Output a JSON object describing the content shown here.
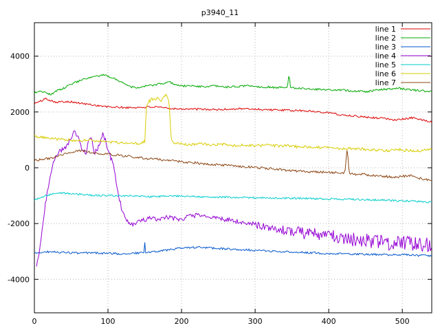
{
  "window": {
    "background": "#ffffff"
  },
  "chart_data": {
    "type": "line",
    "title": "p3940_11",
    "xlabel": "",
    "ylabel": "",
    "xlim": [
      0,
      540
    ],
    "ylim": [
      -5200,
      5200
    ],
    "xticks": [
      0,
      100,
      200,
      300,
      400,
      500
    ],
    "yticks": [
      -4000,
      -2000,
      0,
      2000,
      4000
    ],
    "grid": "dotted",
    "legend_position": "top-right",
    "axis_color": "#000000",
    "grid_color": "#b4b4b4",
    "series": [
      {
        "name": "line 1",
        "color": "#dd0000",
        "seed": 101,
        "noise": [
          [
            0,
            35
          ],
          [
            540,
            35
          ]
        ],
        "points": [
          [
            0,
            2300
          ],
          [
            8,
            2380
          ],
          [
            15,
            2480
          ],
          [
            22,
            2420
          ],
          [
            30,
            2350
          ],
          [
            45,
            2380
          ],
          [
            60,
            2320
          ],
          [
            80,
            2250
          ],
          [
            100,
            2180
          ],
          [
            130,
            2150
          ],
          [
            160,
            2180
          ],
          [
            190,
            2120
          ],
          [
            220,
            2100
          ],
          [
            250,
            2080
          ],
          [
            280,
            2120
          ],
          [
            310,
            2090
          ],
          [
            340,
            2060
          ],
          [
            370,
            2040
          ],
          [
            400,
            1980
          ],
          [
            415,
            1900
          ],
          [
            430,
            1870
          ],
          [
            445,
            1830
          ],
          [
            460,
            1800
          ],
          [
            475,
            1770
          ],
          [
            490,
            1720
          ],
          [
            505,
            1750
          ],
          [
            515,
            1800
          ],
          [
            525,
            1720
          ],
          [
            540,
            1640
          ]
        ]
      },
      {
        "name": "line 2",
        "color": "#00a800",
        "seed": 202,
        "noise": [
          [
            0,
            35
          ],
          [
            540,
            35
          ]
        ],
        "points": [
          [
            0,
            2680
          ],
          [
            8,
            2760
          ],
          [
            15,
            2700
          ],
          [
            22,
            2620
          ],
          [
            30,
            2760
          ],
          [
            38,
            2820
          ],
          [
            50,
            3000
          ],
          [
            62,
            3120
          ],
          [
            72,
            3200
          ],
          [
            85,
            3280
          ],
          [
            95,
            3320
          ],
          [
            105,
            3240
          ],
          [
            115,
            3120
          ],
          [
            125,
            2980
          ],
          [
            132,
            2900
          ],
          [
            140,
            2880
          ],
          [
            150,
            2920
          ],
          [
            160,
            2960
          ],
          [
            170,
            3000
          ],
          [
            178,
            3030
          ],
          [
            185,
            3060
          ],
          [
            192,
            2980
          ],
          [
            200,
            2930
          ],
          [
            215,
            2940
          ],
          [
            230,
            2900
          ],
          [
            245,
            2930
          ],
          [
            260,
            2890
          ],
          [
            275,
            2910
          ],
          [
            290,
            2950
          ],
          [
            305,
            2900
          ],
          [
            320,
            2890
          ],
          [
            335,
            2870
          ],
          [
            344,
            2880
          ],
          [
            346,
            3380
          ],
          [
            348,
            2880
          ],
          [
            360,
            2850
          ],
          [
            375,
            2830
          ],
          [
            390,
            2800
          ],
          [
            405,
            2790
          ],
          [
            420,
            2780
          ],
          [
            435,
            2750
          ],
          [
            450,
            2730
          ],
          [
            465,
            2780
          ],
          [
            480,
            2820
          ],
          [
            495,
            2850
          ],
          [
            510,
            2800
          ],
          [
            525,
            2760
          ],
          [
            540,
            2730
          ]
        ]
      },
      {
        "name": "line 3",
        "color": "#0055cc",
        "seed": 303,
        "noise": [
          [
            0,
            35
          ],
          [
            540,
            35
          ]
        ],
        "points": [
          [
            0,
            -3060
          ],
          [
            20,
            -3010
          ],
          [
            40,
            -3040
          ],
          [
            60,
            -3060
          ],
          [
            80,
            -3050
          ],
          [
            100,
            -3070
          ],
          [
            120,
            -3090
          ],
          [
            135,
            -3060
          ],
          [
            149,
            -3050
          ],
          [
            150,
            -2680
          ],
          [
            151,
            -3050
          ],
          [
            165,
            -3000
          ],
          [
            180,
            -2950
          ],
          [
            195,
            -2900
          ],
          [
            210,
            -2870
          ],
          [
            225,
            -2850
          ],
          [
            240,
            -2880
          ],
          [
            255,
            -2900
          ],
          [
            270,
            -2920
          ],
          [
            285,
            -2940
          ],
          [
            300,
            -2960
          ],
          [
            320,
            -2990
          ],
          [
            340,
            -3010
          ],
          [
            360,
            -3030
          ],
          [
            380,
            -3050
          ],
          [
            400,
            -3070
          ],
          [
            420,
            -3090
          ],
          [
            440,
            -3100
          ],
          [
            460,
            -3110
          ],
          [
            480,
            -3120
          ],
          [
            500,
            -3120
          ],
          [
            520,
            -3140
          ],
          [
            540,
            -3160
          ]
        ]
      },
      {
        "name": "line 4",
        "color": "#9400d3",
        "seed": 404,
        "noise": [
          [
            0,
            50
          ],
          [
            25,
            90
          ],
          [
            100,
            100
          ],
          [
            125,
            80
          ],
          [
            290,
            80
          ],
          [
            320,
            160
          ],
          [
            360,
            220
          ],
          [
            420,
            260
          ],
          [
            540,
            280
          ]
        ],
        "points": [
          [
            3,
            -3520
          ],
          [
            6,
            -3100
          ],
          [
            9,
            -2600
          ],
          [
            12,
            -1900
          ],
          [
            15,
            -1300
          ],
          [
            18,
            -800
          ],
          [
            22,
            -300
          ],
          [
            26,
            200
          ],
          [
            30,
            450
          ],
          [
            35,
            600
          ],
          [
            40,
            700
          ],
          [
            45,
            800
          ],
          [
            50,
            1050
          ],
          [
            55,
            1300
          ],
          [
            58,
            1150
          ],
          [
            62,
            900
          ],
          [
            66,
            600
          ],
          [
            70,
            500
          ],
          [
            74,
            950
          ],
          [
            78,
            1050
          ],
          [
            82,
            500
          ],
          [
            86,
            700
          ],
          [
            90,
            1000
          ],
          [
            94,
            1250
          ],
          [
            98,
            800
          ],
          [
            102,
            500
          ],
          [
            106,
            200
          ],
          [
            110,
            -300
          ],
          [
            114,
            -900
          ],
          [
            118,
            -1400
          ],
          [
            122,
            -1700
          ],
          [
            128,
            -1950
          ],
          [
            135,
            -2050
          ],
          [
            142,
            -1950
          ],
          [
            150,
            -1850
          ],
          [
            160,
            -1800
          ],
          [
            170,
            -1850
          ],
          [
            180,
            -1780
          ],
          [
            190,
            -1820
          ],
          [
            200,
            -1850
          ],
          [
            210,
            -1750
          ],
          [
            220,
            -1700
          ],
          [
            230,
            -1750
          ],
          [
            240,
            -1780
          ],
          [
            250,
            -1820
          ],
          [
            260,
            -1850
          ],
          [
            270,
            -1900
          ],
          [
            280,
            -1950
          ],
          [
            290,
            -2000
          ],
          [
            300,
            -2050
          ],
          [
            315,
            -2120
          ],
          [
            330,
            -2200
          ],
          [
            345,
            -2250
          ],
          [
            360,
            -2320
          ],
          [
            375,
            -2380
          ],
          [
            390,
            -2420
          ],
          [
            405,
            -2480
          ],
          [
            420,
            -2520
          ],
          [
            435,
            -2560
          ],
          [
            450,
            -2600
          ],
          [
            465,
            -2640
          ],
          [
            480,
            -2680
          ],
          [
            495,
            -2710
          ],
          [
            510,
            -2740
          ],
          [
            525,
            -2770
          ],
          [
            540,
            -2800
          ]
        ]
      },
      {
        "name": "line 5",
        "color": "#00cccc",
        "seed": 505,
        "noise": [
          [
            0,
            30
          ],
          [
            540,
            35
          ]
        ],
        "points": [
          [
            0,
            -1150
          ],
          [
            8,
            -1080
          ],
          [
            16,
            -1000
          ],
          [
            25,
            -930
          ],
          [
            35,
            -900
          ],
          [
            50,
            -930
          ],
          [
            65,
            -960
          ],
          [
            80,
            -990
          ],
          [
            100,
            -1000
          ],
          [
            130,
            -1010
          ],
          [
            160,
            -1040
          ],
          [
            190,
            -1010
          ],
          [
            220,
            -1030
          ],
          [
            250,
            -1050
          ],
          [
            280,
            -1070
          ],
          [
            310,
            -1080
          ],
          [
            340,
            -1090
          ],
          [
            370,
            -1100
          ],
          [
            400,
            -1120
          ],
          [
            430,
            -1130
          ],
          [
            460,
            -1150
          ],
          [
            490,
            -1180
          ],
          [
            515,
            -1200
          ],
          [
            540,
            -1240
          ]
        ]
      },
      {
        "name": "line 6",
        "color": "#d8cc00",
        "seed": 606,
        "noise": [
          [
            0,
            45
          ],
          [
            148,
            45
          ],
          [
            150,
            80
          ],
          [
            185,
            80
          ],
          [
            190,
            50
          ],
          [
            540,
            50
          ]
        ],
        "points": [
          [
            0,
            1120
          ],
          [
            15,
            1080
          ],
          [
            30,
            1030
          ],
          [
            45,
            1000
          ],
          [
            60,
            960
          ],
          [
            75,
            1000
          ],
          [
            90,
            960
          ],
          [
            105,
            920
          ],
          [
            120,
            890
          ],
          [
            135,
            860
          ],
          [
            145,
            880
          ],
          [
            150,
            950
          ],
          [
            152,
            2150
          ],
          [
            156,
            2350
          ],
          [
            160,
            2450
          ],
          [
            164,
            2380
          ],
          [
            168,
            2480
          ],
          [
            172,
            2420
          ],
          [
            176,
            2550
          ],
          [
            180,
            2620
          ],
          [
            183,
            2400
          ],
          [
            185,
            1400
          ],
          [
            187,
            900
          ],
          [
            195,
            870
          ],
          [
            210,
            830
          ],
          [
            225,
            860
          ],
          [
            240,
            820
          ],
          [
            255,
            840
          ],
          [
            270,
            800
          ],
          [
            285,
            820
          ],
          [
            300,
            790
          ],
          [
            315,
            810
          ],
          [
            330,
            780
          ],
          [
            345,
            800
          ],
          [
            360,
            740
          ],
          [
            375,
            760
          ],
          [
            390,
            720
          ],
          [
            405,
            700
          ],
          [
            420,
            670
          ],
          [
            435,
            700
          ],
          [
            450,
            660
          ],
          [
            465,
            640
          ],
          [
            480,
            610
          ],
          [
            495,
            650
          ],
          [
            510,
            620
          ],
          [
            525,
            590
          ],
          [
            540,
            690
          ]
        ]
      },
      {
        "name": "line 7",
        "color": "#8b4513",
        "seed": 707,
        "noise": [
          [
            0,
            40
          ],
          [
            540,
            45
          ]
        ],
        "points": [
          [
            0,
            260
          ],
          [
            12,
            300
          ],
          [
            25,
            360
          ],
          [
            40,
            480
          ],
          [
            55,
            580
          ],
          [
            65,
            620
          ],
          [
            75,
            560
          ],
          [
            90,
            500
          ],
          [
            105,
            470
          ],
          [
            120,
            430
          ],
          [
            135,
            390
          ],
          [
            150,
            340
          ],
          [
            165,
            310
          ],
          [
            180,
            270
          ],
          [
            195,
            230
          ],
          [
            210,
            190
          ],
          [
            225,
            160
          ],
          [
            240,
            130
          ],
          [
            255,
            100
          ],
          [
            270,
            70
          ],
          [
            285,
            40
          ],
          [
            300,
            10
          ],
          [
            315,
            -20
          ],
          [
            330,
            -60
          ],
          [
            345,
            -90
          ],
          [
            360,
            -120
          ],
          [
            375,
            -140
          ],
          [
            390,
            -160
          ],
          [
            405,
            -170
          ],
          [
            415,
            -180
          ],
          [
            422,
            -180
          ],
          [
            425,
            680
          ],
          [
            428,
            -220
          ],
          [
            440,
            -230
          ],
          [
            455,
            -260
          ],
          [
            470,
            -290
          ],
          [
            485,
            -340
          ],
          [
            500,
            -310
          ],
          [
            510,
            -280
          ],
          [
            520,
            -350
          ],
          [
            530,
            -420
          ],
          [
            540,
            -460
          ]
        ]
      }
    ]
  }
}
